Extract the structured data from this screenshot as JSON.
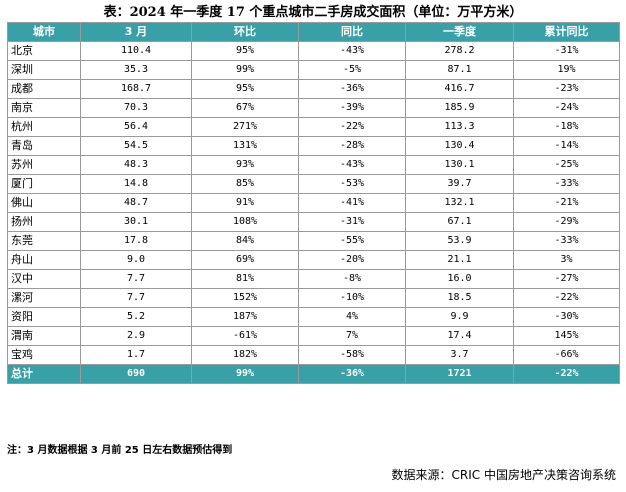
{
  "title": "表：2024 年一季度 17 个重点城市二手房成交面积（单位：万平方米）",
  "columns": [
    "城市",
    "3 月",
    "环比",
    "同比",
    "一季度",
    "累计同比"
  ],
  "rows": [
    [
      "北京",
      "110.4",
      "95%",
      "-43%",
      "278.2",
      "-31%"
    ],
    [
      "深圳",
      "35.3",
      "99%",
      "-5%",
      "87.1",
      "19%"
    ],
    [
      "成都",
      "168.7",
      "95%",
      "-36%",
      "416.7",
      "-23%"
    ],
    [
      "南京",
      "70.3",
      "67%",
      "-39%",
      "185.9",
      "-24%"
    ],
    [
      "杭州",
      "56.4",
      "271%",
      "-22%",
      "113.3",
      "-18%"
    ],
    [
      "青岛",
      "54.5",
      "131%",
      "-28%",
      "130.4",
      "-14%"
    ],
    [
      "苏州",
      "48.3",
      "93%",
      "-43%",
      "130.1",
      "-25%"
    ],
    [
      "厦门",
      "14.8",
      "85%",
      "-53%",
      "39.7",
      "-33%"
    ],
    [
      "佛山",
      "48.7",
      "91%",
      "-41%",
      "132.1",
      "-21%"
    ],
    [
      "扬州",
      "30.1",
      "108%",
      "-31%",
      "67.1",
      "-29%"
    ],
    [
      "东莞",
      "17.8",
      "84%",
      "-55%",
      "53.9",
      "-33%"
    ],
    [
      "舟山",
      "9.0",
      "69%",
      "-20%",
      "21.1",
      "3%"
    ],
    [
      "汉中",
      "7.7",
      "81%",
      "-8%",
      "16.0",
      "-27%"
    ],
    [
      "漯河",
      "7.7",
      "152%",
      "-10%",
      "18.5",
      "-22%"
    ],
    [
      "资阳",
      "5.2",
      "187%",
      "4%",
      "9.9",
      "-30%"
    ],
    [
      "渭南",
      "2.9",
      "-61%",
      "7%",
      "17.4",
      "145%"
    ],
    [
      "宝鸡",
      "1.7",
      "182%",
      "-58%",
      "3.7",
      "-66%"
    ]
  ],
  "total": [
    "总计",
    "690",
    "99%",
    "-36%",
    "1721",
    "-22%"
  ],
  "note": "注：3 月数据根据 3 月前 25 日左右数据预估得到",
  "source": "数据来源：CRIC 中国房地产决策咨询系统",
  "colors": {
    "header_bg": "#3aa0a8",
    "header_text": "#ffffff",
    "border": "#9a9a9a"
  }
}
